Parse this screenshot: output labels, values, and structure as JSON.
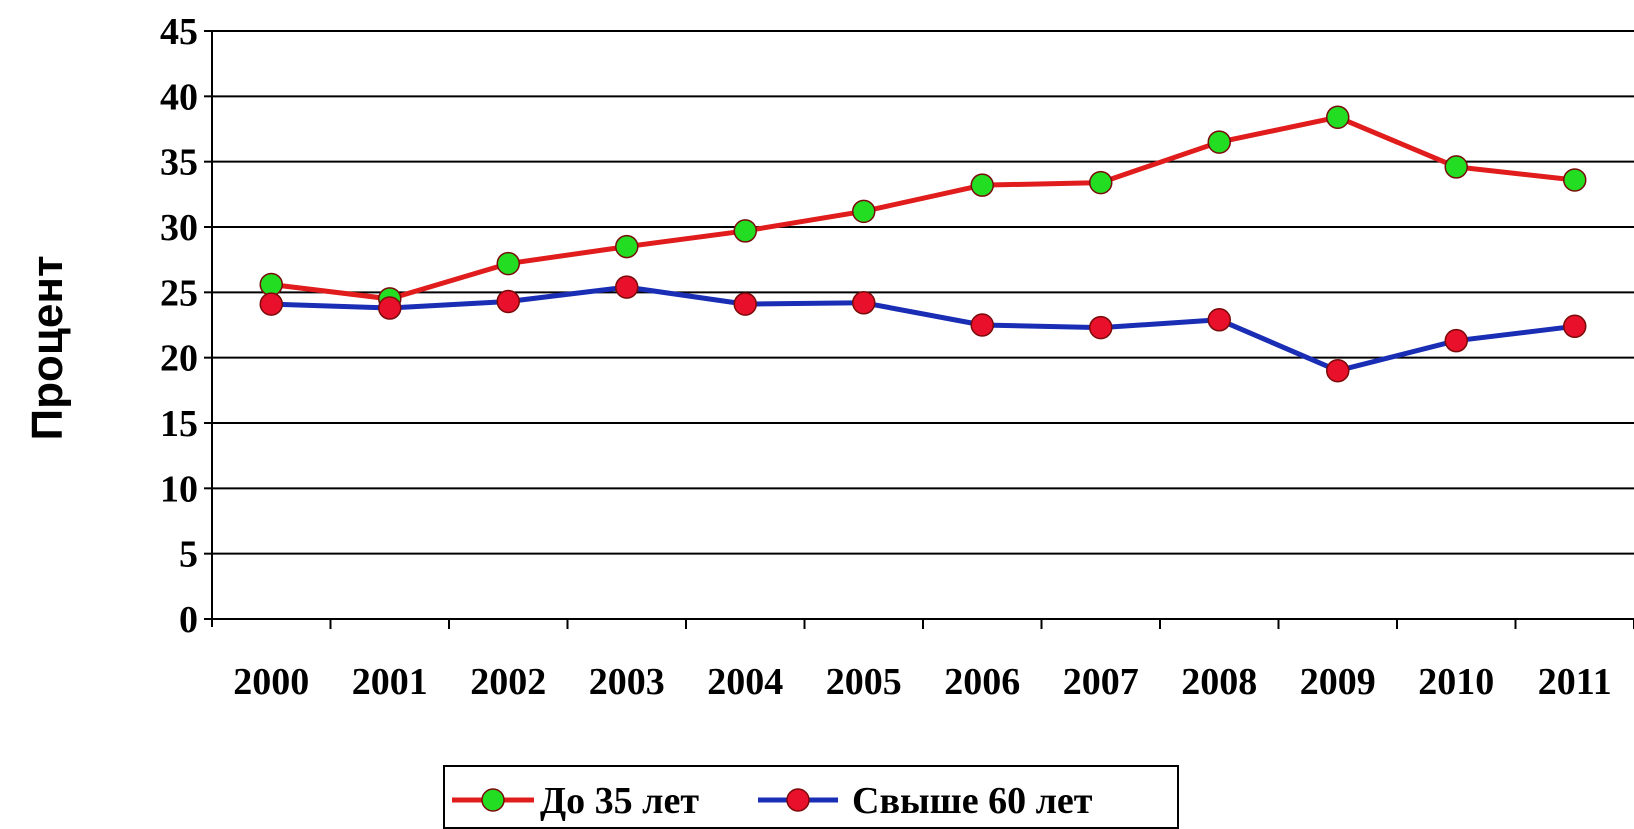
{
  "chart_data": {
    "type": "line",
    "title": "",
    "xlabel": "",
    "ylabel": "Процент",
    "x": [
      "2000",
      "2001",
      "2002",
      "2003",
      "2004",
      "2005",
      "2006",
      "2007",
      "2008",
      "2009",
      "2010",
      "2011"
    ],
    "y_ticks": [
      "0",
      "5",
      "10",
      "15",
      "20",
      "25",
      "30",
      "35",
      "40",
      "45"
    ],
    "ylim": [
      0,
      45
    ],
    "grid": "horizontal",
    "legend_position": "bottom",
    "series": [
      {
        "name": "До 35 лет",
        "values": [
          25.6,
          24.5,
          27.2,
          28.5,
          29.7,
          31.2,
          33.2,
          33.4,
          36.5,
          38.4,
          34.6,
          33.6
        ],
        "line_color": "#e01c1c",
        "marker_color": "#22dd22"
      },
      {
        "name": "Свыше 60 лет",
        "values": [
          24.1,
          23.8,
          24.3,
          25.4,
          24.1,
          24.2,
          22.5,
          22.3,
          22.9,
          19.0,
          21.3,
          22.4
        ],
        "line_color": "#1a2db5",
        "marker_color": "#e8102a"
      }
    ]
  }
}
